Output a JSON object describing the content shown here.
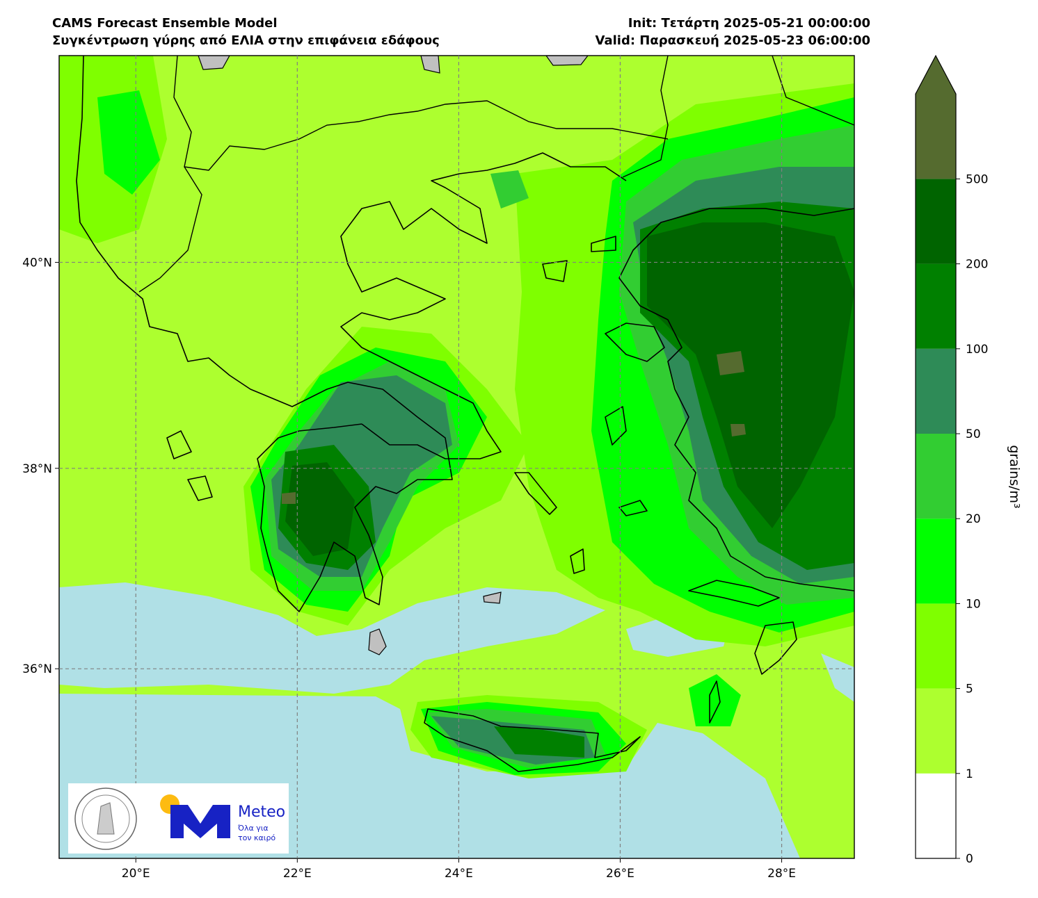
{
  "header": {
    "title_left": [
      "CAMS Forecast Ensemble Model",
      "Συγκέντρωση γύρης από ΕΛΙΑ στην επιφάνεια εδάφους"
    ],
    "title_right": [
      "Init: Τετάρτη 2025-05-21 00:00:00",
      "Valid: Παρασκευή 2025-05-23 06:00:00"
    ]
  },
  "map": {
    "projection": "mercator",
    "lonlim": [
      19.05,
      28.9
    ],
    "latlim": [
      34.06,
      41.95
    ],
    "grid": true,
    "xticks": [
      {
        "value": 20,
        "label": "20°E"
      },
      {
        "value": 22,
        "label": "22°E"
      },
      {
        "value": 24,
        "label": "24°E"
      },
      {
        "value": 26,
        "label": "26°E"
      },
      {
        "value": 28,
        "label": "28°E"
      }
    ],
    "yticks": [
      {
        "value": 36,
        "label": "36°N"
      },
      {
        "value": 38,
        "label": "38°N"
      },
      {
        "value": 40,
        "label": "40°N"
      }
    ]
  },
  "colorbar": {
    "label": "grains/m³",
    "extend": "max",
    "levels": [
      0,
      1,
      5,
      10,
      20,
      50,
      100,
      200,
      500
    ],
    "colors": [
      "#ffffff",
      "#adff2f",
      "#7fff00",
      "#00ff00",
      "#32cd32",
      "#2e8b57",
      "#008000",
      "#006400",
      "#556b2f"
    ]
  },
  "logo": {
    "brand": "Meteo",
    "slogan": [
      "Όλα για",
      "τον καιρό"
    ]
  }
}
